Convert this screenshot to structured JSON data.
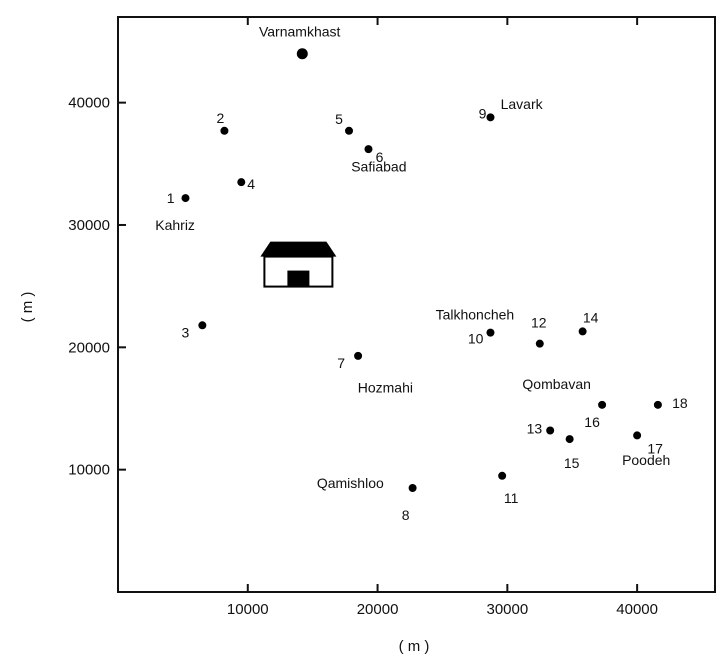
{
  "chart_data": {
    "type": "scatter",
    "title": "",
    "xlabel": "( m )",
    "ylabel": "( m )",
    "xlim": [
      0,
      46000
    ],
    "ylim": [
      0,
      47000
    ],
    "xticks": [
      10000,
      20000,
      30000,
      40000
    ],
    "yticks": [
      10000,
      20000,
      30000,
      40000
    ],
    "xtick_labels": [
      "10000",
      "20000",
      "30000",
      "40000"
    ],
    "ytick_labels": [
      "10000",
      "20000",
      "30000",
      "40000"
    ],
    "grid": false,
    "points": [
      {
        "label": "1",
        "x": 5200,
        "y": 32200
      },
      {
        "label": "2",
        "x": 8200,
        "y": 37700
      },
      {
        "label": "3",
        "x": 6500,
        "y": 21800
      },
      {
        "label": "4",
        "x": 9500,
        "y": 33500
      },
      {
        "label": "5",
        "x": 17800,
        "y": 37700
      },
      {
        "label": "6",
        "x": 19300,
        "y": 36200
      },
      {
        "label": "7",
        "x": 18500,
        "y": 19300
      },
      {
        "label": "8",
        "x": 22700,
        "y": 8500
      },
      {
        "label": "9",
        "x": 28700,
        "y": 38800
      },
      {
        "label": "10",
        "x": 28700,
        "y": 21200
      },
      {
        "label": "11",
        "x": 29600,
        "y": 9500
      },
      {
        "label": "12",
        "x": 32500,
        "y": 20300
      },
      {
        "label": "13",
        "x": 33300,
        "y": 13200
      },
      {
        "label": "14",
        "x": 35800,
        "y": 21300
      },
      {
        "label": "15",
        "x": 34800,
        "y": 12500
      },
      {
        "label": "16",
        "x": 37300,
        "y": 15300
      },
      {
        "label": "17",
        "x": 40000,
        "y": 12800
      },
      {
        "label": "18",
        "x": 41600,
        "y": 15300
      }
    ],
    "town": {
      "label": "Varnamkhast",
      "x": 14200,
      "y": 44000
    },
    "place_labels": [
      {
        "text": "Varnamkhast",
        "x": 14000,
        "y": 45800
      },
      {
        "text": "Lavark",
        "x": 31100,
        "y": 39900
      },
      {
        "text": "Safiabad",
        "x": 20100,
        "y": 34800
      },
      {
        "text": "Kahriz",
        "x": 4400,
        "y": 30000
      },
      {
        "text": "Talkhoncheh",
        "x": 27500,
        "y": 22700
      },
      {
        "text": "Hozmahi",
        "x": 20600,
        "y": 16700
      },
      {
        "text": "Qombavan",
        "x": 33800,
        "y": 17000
      },
      {
        "text": "Poodeh",
        "x": 40700,
        "y": 10800
      },
      {
        "text": "Qamishloo",
        "x": 17900,
        "y": 8900
      }
    ],
    "site_building": {
      "icon": "building-icon",
      "x": 13900,
      "y": 26600
    }
  }
}
